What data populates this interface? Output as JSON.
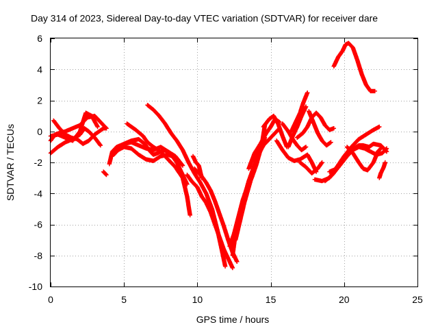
{
  "chart_data": {
    "type": "scatter",
    "title": "Day 314 of 2023, Sidereal Day-to-day VTEC variation (SDTVAR) for receiver dare",
    "xlabel": "GPS time / hours",
    "ylabel": "SDTVAR / TECUs",
    "xlim": [
      0,
      25
    ],
    "ylim": [
      -10,
      6
    ],
    "xticks": [
      "0",
      "5",
      "10",
      "15",
      "20",
      "25"
    ],
    "yticks": [
      "-10",
      "-8",
      "-6",
      "-4",
      "-2",
      "0",
      "2",
      "4",
      "6"
    ],
    "grid": true,
    "series_color": "#ff0000",
    "marker": "plus",
    "tracks": [
      {
        "x": [
          0.0,
          0.3,
          0.6,
          1.0,
          1.5,
          2.0,
          2.5,
          3.0,
          3.5,
          3.8
        ],
        "y": [
          -0.6,
          -0.2,
          -0.1,
          0.0,
          0.2,
          0.4,
          0.9,
          1.0,
          0.5,
          0.2
        ]
      },
      {
        "x": [
          0.0,
          0.5,
          1.0,
          1.5,
          2.0,
          2.3,
          2.6,
          3.0,
          3.4
        ],
        "y": [
          -1.4,
          -1.0,
          -0.7,
          -0.5,
          -0.2,
          0.2,
          0.0,
          -0.4,
          -0.9
        ]
      },
      {
        "x": [
          0.2,
          0.6,
          1.0,
          1.4,
          1.8,
          2.2,
          2.6,
          3.0,
          3.6,
          3.8
        ],
        "y": [
          0.7,
          0.2,
          -0.2,
          -0.4,
          -0.5,
          -0.8,
          -0.6,
          -0.2,
          0.2,
          0.2
        ]
      },
      {
        "x": [
          0.0,
          0.5,
          1.0,
          1.5,
          2.0,
          2.4,
          2.8,
          3.2
        ],
        "y": [
          -0.3,
          -0.2,
          -0.4,
          -0.6,
          0.0,
          1.2,
          1.0,
          0.3
        ]
      },
      {
        "x": [
          3.6,
          3.7,
          3.8
        ],
        "y": [
          -2.6,
          -2.7,
          -2.8
        ]
      },
      {
        "x": [
          4.0,
          4.2,
          4.5,
          5.0,
          5.5,
          6.0,
          6.5,
          7.0,
          7.5,
          8.0
        ],
        "y": [
          -2.1,
          -1.3,
          -1.0,
          -0.8,
          -0.7,
          -0.9,
          -1.1,
          -1.2,
          -1.0,
          -1.3
        ]
      },
      {
        "x": [
          4.3,
          4.6,
          5.0,
          5.5,
          6.0,
          6.5,
          7.0,
          7.5,
          8.0,
          8.3,
          8.6,
          9.0,
          9.3
        ],
        "y": [
          -1.5,
          -1.2,
          -1.0,
          -1.1,
          -1.5,
          -1.8,
          -1.9,
          -1.6,
          -1.5,
          -1.6,
          -2.0,
          -2.8,
          -3.4
        ]
      },
      {
        "x": [
          5.0,
          5.5,
          6.0,
          6.4,
          6.8,
          7.0,
          7.3,
          7.7,
          8.0,
          8.5,
          9.0
        ],
        "y": [
          -0.8,
          -0.6,
          -0.5,
          -0.8,
          -1.3,
          -1.5,
          -1.4,
          -1.2,
          -1.3,
          -1.6,
          -2.2
        ]
      },
      {
        "x": [
          5.2,
          5.8,
          6.3,
          6.6,
          7.0,
          7.5,
          8.0,
          8.5,
          9.0,
          9.3,
          9.5
        ],
        "y": [
          0.5,
          0.1,
          -0.3,
          -0.7,
          -1.0,
          -1.3,
          -1.8,
          -2.3,
          -3.0,
          -4.2,
          -5.4
        ]
      },
      {
        "x": [
          6.6,
          7.0,
          7.4,
          7.8,
          8.2,
          8.6,
          9.0,
          9.4,
          9.8,
          10.2,
          10.6,
          11.0,
          11.4,
          11.7,
          11.9
        ],
        "y": [
          1.7,
          1.4,
          1.0,
          0.5,
          -0.1,
          -0.6,
          -1.2,
          -2.0,
          -2.7,
          -3.3,
          -4.0,
          -5.0,
          -6.5,
          -7.8,
          -8.7
        ]
      },
      {
        "x": [
          9.3,
          9.6,
          10.0,
          10.3,
          10.6,
          10.9,
          11.2,
          11.5,
          11.8,
          12.1,
          12.4
        ],
        "y": [
          -2.8,
          -3.2,
          -3.6,
          -4.2,
          -4.6,
          -5.2,
          -6.0,
          -6.8,
          -7.6,
          -8.2,
          -8.8
        ]
      },
      {
        "x": [
          9.8,
          10.0,
          10.3,
          10.6,
          10.9,
          11.2,
          11.5,
          11.8,
          12.1,
          12.4,
          12.7
        ],
        "y": [
          -2.4,
          -2.6,
          -2.9,
          -3.3,
          -3.8,
          -4.5,
          -5.3,
          -6.1,
          -7.0,
          -7.8,
          -8.4
        ]
      },
      {
        "x": [
          9.7,
          9.9,
          10.1,
          10.3
        ],
        "y": [
          -1.6,
          -2.0,
          -2.2,
          -3.0
        ]
      },
      {
        "x": [
          12.4,
          12.6,
          12.9,
          13.2,
          13.5,
          13.8,
          14.1,
          14.4,
          14.6
        ],
        "y": [
          -8.0,
          -6.6,
          -5.4,
          -4.2,
          -3.2,
          -2.4,
          -1.6,
          -0.8,
          0.4
        ]
      },
      {
        "x": [
          12.2,
          12.5,
          12.8,
          13.1,
          13.4,
          13.7,
          14.0,
          14.3,
          14.6
        ],
        "y": [
          -7.4,
          -6.6,
          -5.5,
          -4.4,
          -3.6,
          -3.0,
          -2.2,
          -1.2,
          -0.4
        ]
      },
      {
        "x": [
          12.6,
          12.9,
          13.2,
          13.5,
          13.8,
          14.1,
          14.5,
          14.8,
          15.2,
          15.6
        ],
        "y": [
          -7.0,
          -5.8,
          -4.6,
          -3.6,
          -2.6,
          -1.6,
          -0.9,
          -0.6,
          -0.2,
          0.2
        ]
      },
      {
        "x": [
          13.5,
          13.9,
          14.3,
          14.7,
          15.0,
          15.3,
          15.6
        ],
        "y": [
          -2.4,
          -1.4,
          -0.8,
          -0.1,
          0.3,
          0.8,
          0.6
        ]
      },
      {
        "x": [
          14.5,
          14.9,
          15.2,
          15.5,
          15.8,
          16.1
        ],
        "y": [
          0.3,
          0.8,
          1.0,
          0.5,
          -0.3,
          -1.0
        ]
      },
      {
        "x": [
          15.4,
          15.8,
          16.2,
          16.6,
          17.0,
          17.5,
          17.8,
          18.1
        ],
        "y": [
          -0.6,
          -1.2,
          -1.7,
          -1.9,
          -1.8,
          -1.5,
          -2.0,
          -2.6
        ]
      },
      {
        "x": [
          15.8,
          16.2,
          16.5,
          16.8,
          17.1,
          17.4
        ],
        "y": [
          0.5,
          0.0,
          -0.5,
          -0.9,
          -1.2,
          -1.0
        ]
      },
      {
        "x": [
          16.2,
          16.5,
          16.8,
          17.1,
          17.4
        ],
        "y": [
          -1.0,
          -0.3,
          0.3,
          1.0,
          1.6
        ]
      },
      {
        "x": [
          16.4,
          16.7,
          17.0,
          17.2,
          17.5
        ],
        "y": [
          0.0,
          0.6,
          1.2,
          1.8,
          2.5
        ]
      },
      {
        "x": [
          16.8,
          17.2,
          17.5,
          17.8,
          18.1,
          18.4,
          18.7,
          19.0,
          19.3
        ],
        "y": [
          -0.4,
          -0.1,
          0.3,
          0.9,
          1.2,
          0.9,
          0.4,
          0.1,
          0.2
        ]
      },
      {
        "x": [
          17.0,
          17.4,
          17.8,
          18.2,
          18.5
        ],
        "y": [
          -2.0,
          -2.3,
          -2.7,
          -2.4,
          -2.0
        ]
      },
      {
        "x": [
          17.6,
          17.9,
          18.2,
          18.5,
          18.8,
          19.1
        ],
        "y": [
          1.3,
          0.6,
          -0.1,
          -0.6,
          -0.9,
          -0.7
        ]
      },
      {
        "x": [
          18.0,
          18.5,
          19.0,
          19.5,
          20.0,
          20.5,
          21.0,
          21.5,
          22.0,
          22.4
        ],
        "y": [
          -3.1,
          -3.2,
          -3.0,
          -2.3,
          -1.6,
          -1.0,
          -0.5,
          -0.2,
          0.1,
          0.3
        ]
      },
      {
        "x": [
          18.7,
          19.2,
          19.7,
          20.2,
          20.6,
          21.0,
          21.4,
          21.8,
          22.2,
          22.6,
          22.9
        ],
        "y": [
          -3.2,
          -2.8,
          -2.2,
          -1.6,
          -1.2,
          -1.0,
          -1.1,
          -1.3,
          -1.5,
          -1.4,
          -1.1
        ]
      },
      {
        "x": [
          19.0,
          19.5,
          20.0,
          20.5,
          21.0,
          21.3,
          21.7,
          22.0,
          22.5,
          22.9
        ],
        "y": [
          -2.6,
          -2.4,
          -1.8,
          -1.2,
          -0.9,
          -0.9,
          -1.0,
          -0.8,
          -0.9,
          -1.3
        ]
      },
      {
        "x": [
          20.2,
          20.6,
          21.0,
          21.3,
          21.6,
          22.0,
          22.3,
          22.6
        ],
        "y": [
          -1.0,
          -1.4,
          -2.0,
          -2.4,
          -2.5,
          -2.0,
          -1.3,
          -1.0
        ]
      },
      {
        "x": [
          19.3,
          19.6,
          19.9,
          20.1,
          20.3,
          20.6,
          20.9,
          21.2,
          21.5,
          21.8,
          22.1
        ],
        "y": [
          4.2,
          4.8,
          5.2,
          5.6,
          5.7,
          5.4,
          4.6,
          3.7,
          3.0,
          2.6,
          2.6
        ]
      },
      {
        "x": [
          22.4,
          22.5,
          22.7,
          22.8
        ],
        "y": [
          -3.0,
          -2.7,
          -2.3,
          -2.0
        ]
      }
    ]
  }
}
